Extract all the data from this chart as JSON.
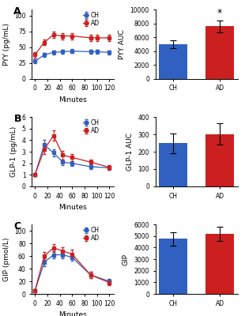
{
  "time_points_pyy": [
    0,
    15,
    30,
    45,
    60,
    90,
    100,
    120
  ],
  "pyy_ch": [
    28,
    38,
    42,
    43,
    44,
    43,
    43,
    42
  ],
  "pyy_ad": [
    38,
    58,
    70,
    68,
    68,
    65,
    65,
    65
  ],
  "pyy_ch_err": [
    3,
    3,
    3,
    3,
    3,
    3,
    3,
    3
  ],
  "pyy_ad_err": [
    4,
    4,
    5,
    5,
    5,
    5,
    5,
    5
  ],
  "time_points_glp": [
    0,
    15,
    30,
    45,
    60,
    90,
    120
  ],
  "glp_ch": [
    1.0,
    3.6,
    2.9,
    2.1,
    2.0,
    1.7,
    1.6
  ],
  "glp_ad": [
    1.0,
    3.2,
    4.4,
    2.7,
    2.5,
    2.1,
    1.65
  ],
  "glp_ch_err": [
    0.1,
    0.4,
    0.3,
    0.25,
    0.2,
    0.2,
    0.15
  ],
  "glp_ad_err": [
    0.1,
    0.4,
    0.45,
    0.35,
    0.3,
    0.25,
    0.2
  ],
  "time_points_gip": [
    0,
    15,
    30,
    45,
    60,
    90,
    120
  ],
  "gip_ch": [
    5,
    50,
    62,
    62,
    58,
    30,
    20
  ],
  "gip_ad": [
    5,
    60,
    73,
    68,
    63,
    30,
    18
  ],
  "gip_ch_err": [
    2,
    6,
    6,
    6,
    6,
    5,
    4
  ],
  "gip_ad_err": [
    2,
    6,
    6,
    6,
    7,
    5,
    4
  ],
  "bar_pyy_ch": 5000,
  "bar_pyy_ad": 7600,
  "bar_pyy_ch_err": 550,
  "bar_pyy_ad_err": 850,
  "bar_glp_ch": 248,
  "bar_glp_ad": 302,
  "bar_glp_ch_err": 55,
  "bar_glp_ad_err": 60,
  "bar_gip_ch": 4750,
  "bar_gip_ad": 5200,
  "bar_gip_ch_err": 550,
  "bar_gip_ad_err": 620,
  "color_ch": "#3060c0",
  "color_ad": "#cc2020",
  "bg_color": "#ffffff",
  "label_fontsize": 6.5,
  "tick_fontsize": 5.5,
  "panel_label_fontsize": 9
}
